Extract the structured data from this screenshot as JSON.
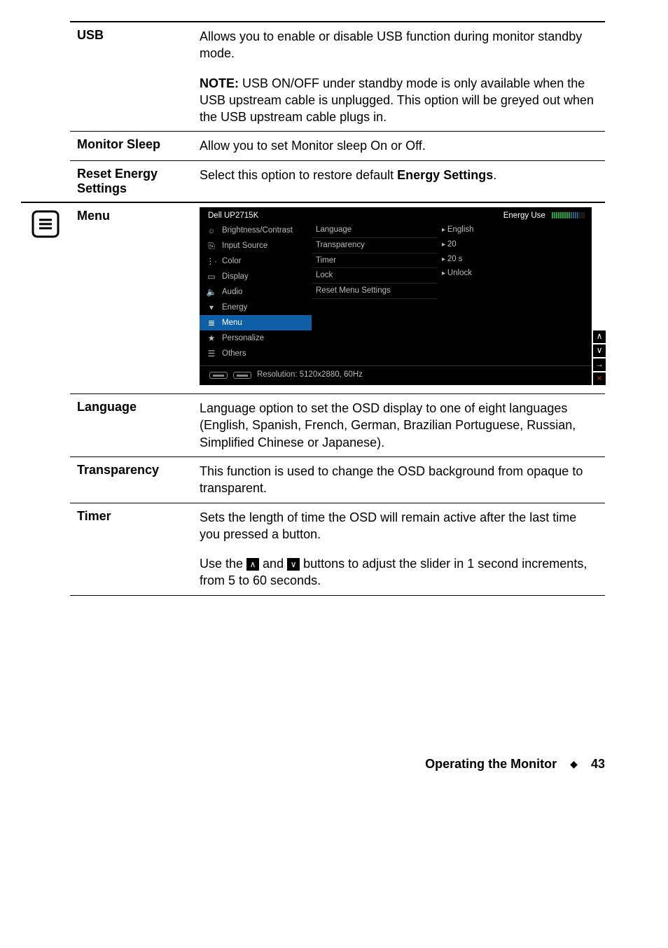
{
  "rows": {
    "usb": {
      "label": "USB",
      "desc1": "Allows you to enable or disable USB function during monitor standby mode.",
      "note_lead": "NOTE:",
      "note_body": " USB ON/OFF under standby mode is only available when the USB upstream cable is unplugged. This option will be greyed out when the USB upstream cable plugs in."
    },
    "monitor_sleep": {
      "label": "Monitor Sleep",
      "desc": "Allow you to set Monitor sleep On or Off."
    },
    "reset_energy": {
      "label": "Reset Energy Settings",
      "desc_a": "Select this option to restore default ",
      "desc_bold": "Energy Settings",
      "desc_b": "."
    },
    "menu": {
      "label": "Menu"
    },
    "language": {
      "label": "Language",
      "desc": "Language option to set the OSD display to one of eight languages (English, Spanish, French, German, Brazilian Portuguese, Russian, Simplified Chinese or Japanese)."
    },
    "transparency": {
      "label": "Transparency",
      "desc": "This function is used to change the OSD background from opaque to transparent."
    },
    "timer": {
      "label": "Timer",
      "desc1": "Sets the length of time the OSD will remain active after the last time you pressed a button.",
      "desc2a": "Use the ",
      "desc2b": " and ",
      "desc2c": " buttons to adjust the slider in 1 second increments, from 5 to 60 seconds."
    }
  },
  "osd": {
    "model": "Dell UP2715K",
    "energy_label": "Energy Use",
    "energy_bar_colors": [
      "#1fa83a",
      "#1fa83a",
      "#1fa83a",
      "#1fa83a",
      "#1fa83a",
      "#1fa83a",
      "#1fa83a",
      "#1fa83a",
      "#1fa83a",
      "#285a8a",
      "#285a8a",
      "#285a8a",
      "#285a8a",
      "#222",
      "#222",
      "#222"
    ],
    "nav": [
      {
        "icon": "☼",
        "label": "Brightness/Contrast"
      },
      {
        "icon": "⎘",
        "label": "Input Source"
      },
      {
        "icon": "⋮∙",
        "label": "Color"
      },
      {
        "icon": "▭",
        "label": "Display"
      },
      {
        "icon": "🔈",
        "label": "Audio"
      },
      {
        "icon": "▾",
        "label": "Energy"
      },
      {
        "icon": "≣",
        "label": "Menu",
        "selected": true
      },
      {
        "icon": "★",
        "label": "Personalize"
      },
      {
        "icon": "☰",
        "label": "Others"
      }
    ],
    "options": [
      "Language",
      "Transparency",
      "Timer",
      "Lock",
      "Reset Menu Settings"
    ],
    "values": [
      "English",
      "20",
      "20 s",
      "Unlock"
    ],
    "resolution": "Resolution: 5120x2880, 60Hz",
    "side_buttons": [
      "∧",
      "∨",
      "→",
      "×"
    ]
  },
  "footer": {
    "title": "Operating the Monitor",
    "page": "43"
  },
  "colors": {
    "osd_bg": "#000000",
    "osd_selected": "#0f5fa8",
    "osd_text_dim": "#bbbbbb"
  }
}
